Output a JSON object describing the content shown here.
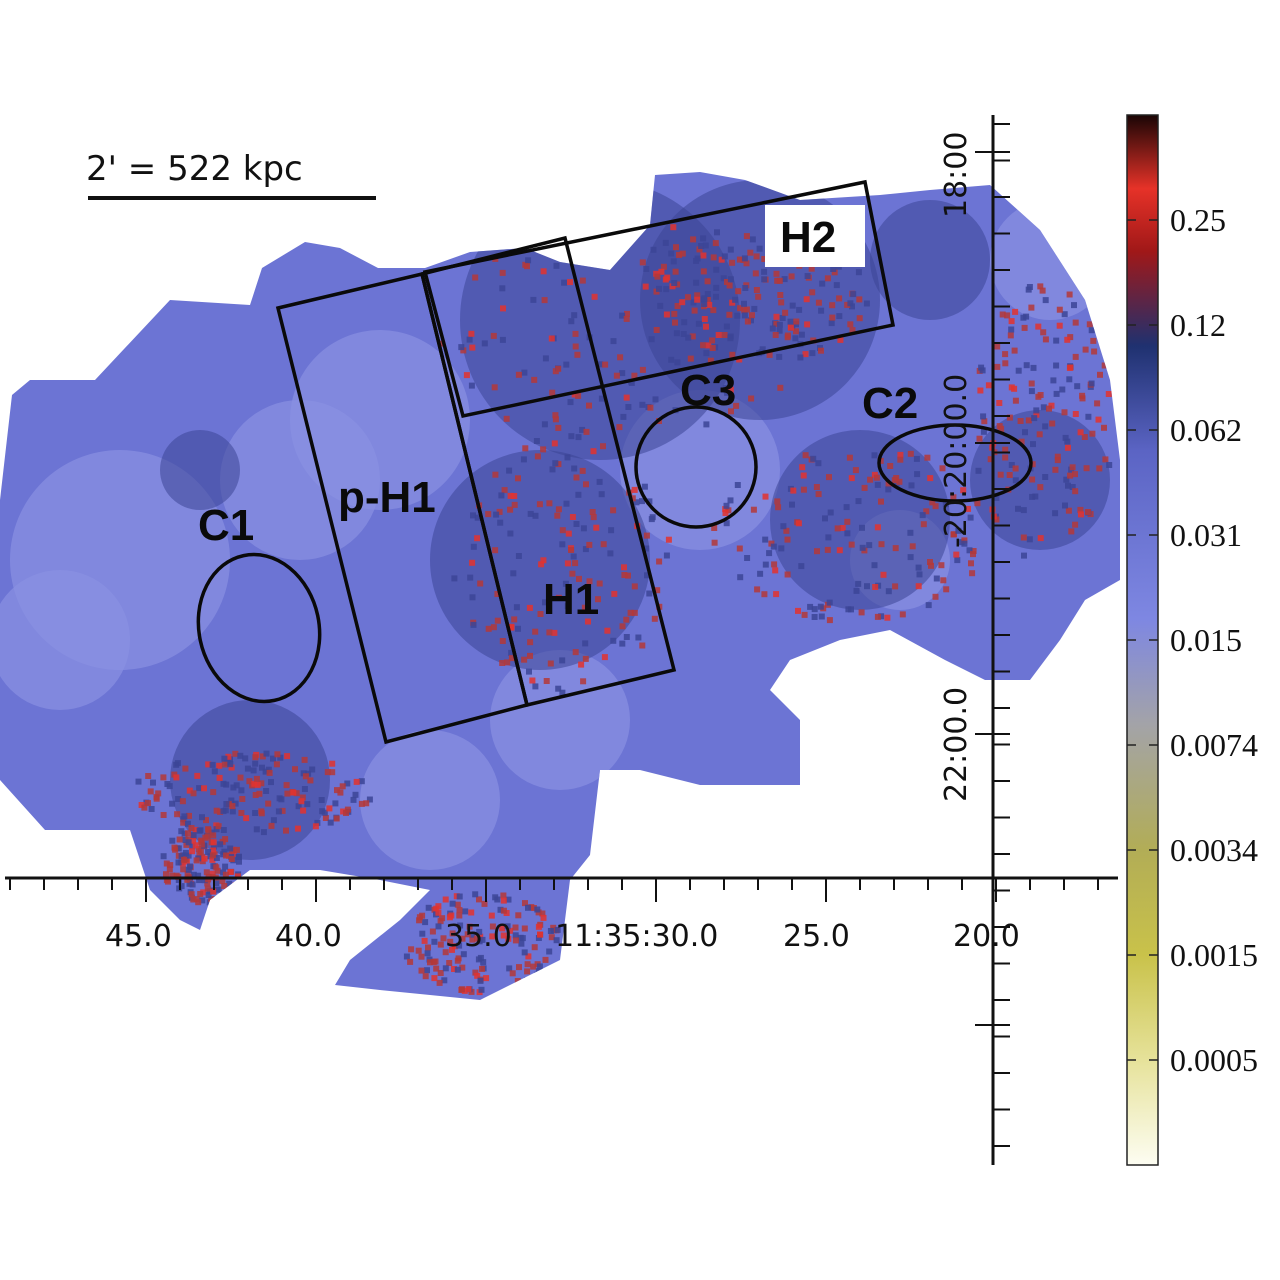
{
  "scale_bar": {
    "label": "2' = 522 kpc"
  },
  "regions": [
    {
      "id": "C1",
      "label": "C1",
      "shape": "ellipse"
    },
    {
      "id": "C2",
      "label": "C2",
      "shape": "ellipse"
    },
    {
      "id": "C3",
      "label": "C3",
      "shape": "ellipse"
    },
    {
      "id": "p-H1",
      "label": "p-H1",
      "shape": "box"
    },
    {
      "id": "H1",
      "label": "H1",
      "shape": "box"
    },
    {
      "id": "H2",
      "label": "H2",
      "shape": "box"
    }
  ],
  "ra_ticks": [
    "45.0",
    "40.0",
    "35.0",
    "11:35:30.0",
    "25.0",
    "20.0"
  ],
  "dec_ticks": [
    "18:00",
    "-20:20:00.0",
    "22:00.0"
  ],
  "colorbar": {
    "ticks": [
      "0.25",
      "0.12",
      "0.062",
      "0.031",
      "0.015",
      "0.0074",
      "0.0034",
      "0.0015",
      "0.0005"
    ],
    "colors": {
      "top": "#1a0505",
      "dark_red": "#a01818",
      "red": "#e63228",
      "navy": "#1f3170",
      "blue": "#5b64c4",
      "light_blue": "#7e87e2",
      "gray": "#a3a3a8",
      "olive": "#bcb43e",
      "pale": "#fdfdf2"
    }
  },
  "colors": {
    "map_base": "#6c74d4",
    "map_light": "#8a91e3",
    "map_dark": "#3c4596",
    "hot": "#b43838",
    "hot_bright": "#e3322e"
  }
}
